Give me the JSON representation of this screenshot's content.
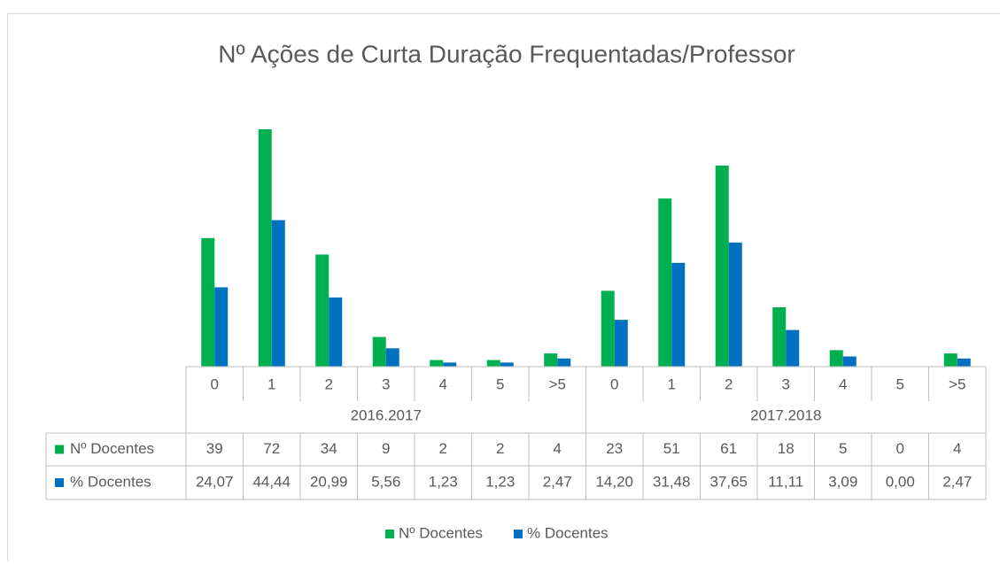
{
  "chart_data": {
    "type": "bar",
    "title": "Nº Ações de Curta Duração Frequentadas/Professor",
    "groups": [
      {
        "name": "2016.2017",
        "categories": [
          "0",
          "1",
          "2",
          "3",
          "4",
          "5",
          ">5"
        ]
      },
      {
        "name": "2017.2018",
        "categories": [
          "0",
          "1",
          "2",
          "3",
          "4",
          "5",
          ">5"
        ]
      }
    ],
    "series": [
      {
        "name": "Nº Docentes",
        "color": "#00b050",
        "values": [
          39,
          72,
          34,
          9,
          2,
          2,
          4,
          23,
          51,
          61,
          18,
          5,
          0,
          4
        ]
      },
      {
        "name": "% Docentes",
        "color": "#0070c0",
        "values": [
          24.07,
          44.44,
          20.99,
          5.56,
          1.23,
          1.23,
          2.47,
          14.2,
          31.48,
          37.65,
          11.11,
          3.09,
          0,
          2.47
        ],
        "value_labels": [
          "24,07",
          "44,44",
          "20,99",
          "5,56",
          "1,23",
          "1,23",
          "2,47",
          "14,20",
          "31,48",
          "37,65",
          "11,11",
          "3,09",
          "0,00",
          "2,47"
        ]
      }
    ],
    "legend": "bottom",
    "data_table": true
  }
}
